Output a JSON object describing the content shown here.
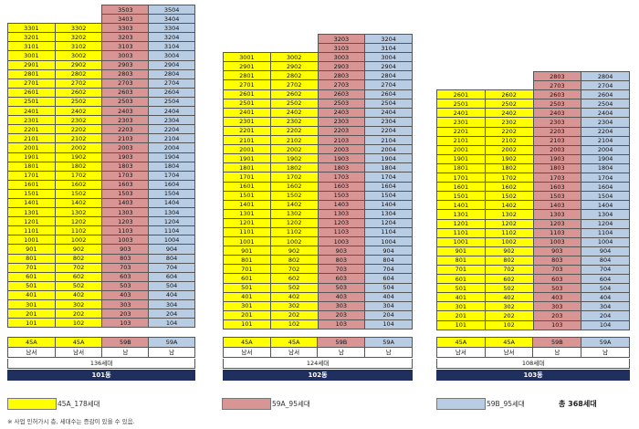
{
  "buildings": [
    {
      "id": "101",
      "top_units": [
        [
          "",
          "",
          "3503",
          "3504"
        ],
        [
          "",
          "",
          "3403",
          "3404"
        ]
      ],
      "floors_top": 33,
      "count": "136세대",
      "name": "101동",
      "types": [
        "45A",
        "45A",
        "59B",
        "59A"
      ],
      "orient": [
        "남서",
        "남서",
        "남",
        "남"
      ]
    },
    {
      "id": "102",
      "top_units": [
        [
          "",
          "",
          "3203",
          "3204"
        ],
        [
          "",
          "",
          "3103",
          "3104"
        ]
      ],
      "floors_top": 30,
      "count": "124세대",
      "name": "102동",
      "types": [
        "45A",
        "45A",
        "59B",
        "59A"
      ],
      "orient": [
        "남서",
        "남서",
        "남",
        "남"
      ]
    },
    {
      "id": "103",
      "top_units": [
        [
          "",
          "",
          "2803",
          "2804"
        ],
        [
          "",
          "",
          "2703",
          "2704"
        ]
      ],
      "floors_top": 26,
      "count": "108세대",
      "name": "103동",
      "types": [
        "45A",
        "45A",
        "59B",
        "59A"
      ],
      "orient": [
        "남서",
        "남서",
        "남",
        "남"
      ]
    }
  ],
  "colors": {
    "yellow": "#ffff00",
    "pink": "#d99594",
    "blue": "#b8cce4",
    "navy": "#1f2f5e"
  },
  "legend": [
    {
      "label": "45A_178세대",
      "color": "#ffff00"
    },
    {
      "label": "59A_95세대",
      "color": "#d99594"
    },
    {
      "label": "59B_95세대",
      "color": "#b8cce4"
    }
  ],
  "total": "총 368세대",
  "note": "※ 사업 인허가시 층, 세대수는 증감이 있을 수 있음."
}
